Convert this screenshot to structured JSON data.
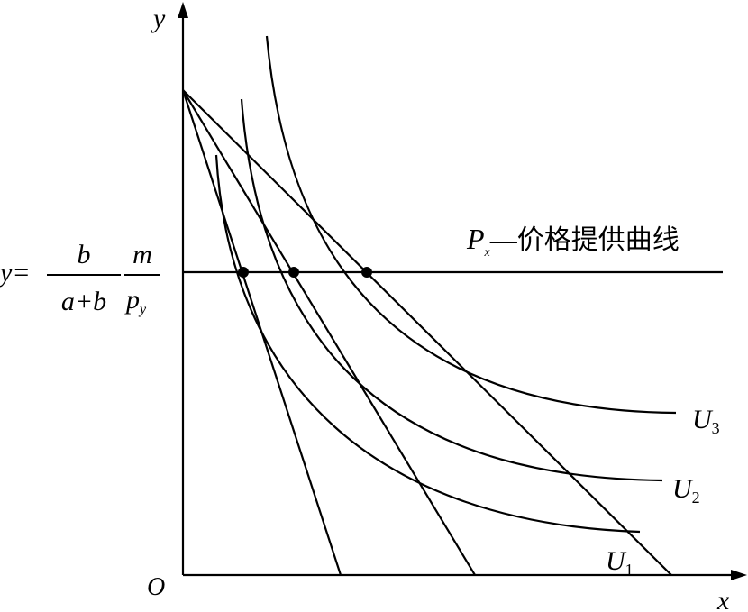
{
  "axes": {
    "y_label": "y",
    "x_label": "x",
    "origin": "O"
  },
  "offer_curve": {
    "symbol": "P",
    "subscript": "x",
    "label": "—价格提供曲线"
  },
  "curves": [
    {
      "symbol": "U",
      "subscript": "1"
    },
    {
      "symbol": "U",
      "subscript": "2"
    },
    {
      "symbol": "U",
      "subscript": "3"
    }
  ],
  "equation": {
    "lhs": "y=",
    "fraction1": {
      "numerator": "b",
      "denominator": "a+b"
    },
    "fraction2": {
      "numerator": "m",
      "denominator": {
        "symbol": "p",
        "subscript": "y"
      }
    }
  }
}
